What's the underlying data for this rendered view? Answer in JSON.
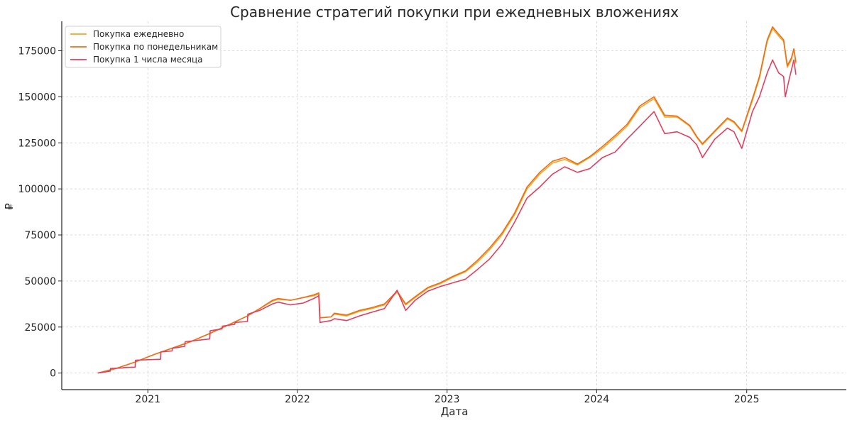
{
  "chart_data": {
    "type": "line",
    "title": "Сравнение стратегий покупки при ежедневных вложениях",
    "xlabel": "Дата",
    "ylabel": "₽",
    "xlim": [
      "2020-06-05",
      "2025-09-01"
    ],
    "ylim": [
      -9000,
      191000
    ],
    "x_ticks": [
      {
        "date": "2021-01-01",
        "label": "2021"
      },
      {
        "date": "2022-01-01",
        "label": "2022"
      },
      {
        "date": "2023-01-01",
        "label": "2023"
      },
      {
        "date": "2024-01-01",
        "label": "2024"
      },
      {
        "date": "2025-01-01",
        "label": "2025"
      }
    ],
    "y_ticks": [
      {
        "value": 0,
        "label": "0"
      },
      {
        "value": 25000,
        "label": "25000"
      },
      {
        "value": 50000,
        "label": "50000"
      },
      {
        "value": 75000,
        "label": "75000"
      },
      {
        "value": 100000,
        "label": "100000"
      },
      {
        "value": 125000,
        "label": "125000"
      },
      {
        "value": 150000,
        "label": "150000"
      },
      {
        "value": 175000,
        "label": "175000"
      }
    ],
    "grid": true,
    "legend_position": "top-left",
    "series": [
      {
        "name": "Покупка ежедневно",
        "color": "#f5a623",
        "points": [
          [
            "2020-09-01",
            0
          ],
          [
            "2020-10-15",
            2500
          ],
          [
            "2020-12-01",
            6000
          ],
          [
            "2021-01-15",
            10000
          ],
          [
            "2021-03-01",
            13500
          ],
          [
            "2021-04-15",
            17000
          ],
          [
            "2021-06-01",
            21500
          ],
          [
            "2021-07-15",
            26000
          ],
          [
            "2021-09-01",
            31000
          ],
          [
            "2021-10-01",
            35000
          ],
          [
            "2021-11-01",
            39000
          ],
          [
            "2021-11-15",
            40000
          ],
          [
            "2021-12-15",
            39500
          ],
          [
            "2022-01-15",
            41000
          ],
          [
            "2022-02-10",
            42000
          ],
          [
            "2022-02-22",
            43000
          ],
          [
            "2022-02-25",
            30000
          ],
          [
            "2022-03-24",
            30500
          ],
          [
            "2022-04-01",
            32000
          ],
          [
            "2022-05-01",
            31000
          ],
          [
            "2022-06-01",
            33500
          ],
          [
            "2022-07-01",
            35000
          ],
          [
            "2022-08-01",
            37000
          ],
          [
            "2022-09-01",
            44000
          ],
          [
            "2022-09-22",
            37000
          ],
          [
            "2022-10-15",
            41000
          ],
          [
            "2022-11-15",
            46000
          ],
          [
            "2022-12-15",
            48500
          ],
          [
            "2023-01-15",
            52000
          ],
          [
            "2023-02-15",
            55000
          ],
          [
            "2023-03-15",
            60000
          ],
          [
            "2023-04-15",
            67000
          ],
          [
            "2023-05-15",
            75000
          ],
          [
            "2023-06-15",
            86000
          ],
          [
            "2023-07-15",
            100000
          ],
          [
            "2023-08-15",
            108000
          ],
          [
            "2023-09-15",
            114000
          ],
          [
            "2023-10-15",
            116000
          ],
          [
            "2023-11-15",
            113000
          ],
          [
            "2023-12-15",
            117000
          ],
          [
            "2024-01-15",
            122000
          ],
          [
            "2024-02-15",
            128000
          ],
          [
            "2024-03-15",
            134000
          ],
          [
            "2024-04-15",
            144000
          ],
          [
            "2024-05-20",
            149000
          ],
          [
            "2024-06-15",
            139000
          ],
          [
            "2024-07-15",
            139000
          ],
          [
            "2024-08-15",
            134000
          ],
          [
            "2024-09-01",
            128000
          ],
          [
            "2024-09-15",
            124000
          ],
          [
            "2024-10-15",
            131000
          ],
          [
            "2024-11-15",
            138000
          ],
          [
            "2024-12-01",
            136000
          ],
          [
            "2024-12-20",
            131000
          ],
          [
            "2025-01-15",
            148000
          ],
          [
            "2025-02-01",
            160000
          ],
          [
            "2025-02-20",
            180000
          ],
          [
            "2025-03-05",
            187000
          ],
          [
            "2025-03-20",
            183000
          ],
          [
            "2025-04-01",
            180000
          ],
          [
            "2025-04-10",
            166000
          ],
          [
            "2025-04-20",
            170000
          ],
          [
            "2025-04-26",
            176000
          ],
          [
            "2025-05-01",
            168000
          ]
        ]
      },
      {
        "name": "Покупка по понедельникам",
        "color": "#e8711c",
        "points": [
          [
            "2020-09-01",
            0
          ],
          [
            "2020-10-15",
            2500
          ],
          [
            "2020-12-01",
            6000
          ],
          [
            "2021-01-15",
            10000
          ],
          [
            "2021-03-01",
            13500
          ],
          [
            "2021-04-15",
            17000
          ],
          [
            "2021-06-01",
            21500
          ],
          [
            "2021-07-15",
            26000
          ],
          [
            "2021-09-01",
            31000
          ],
          [
            "2021-10-01",
            35000
          ],
          [
            "2021-11-01",
            39500
          ],
          [
            "2021-11-15",
            40500
          ],
          [
            "2021-12-15",
            39500
          ],
          [
            "2022-01-15",
            41000
          ],
          [
            "2022-02-10",
            42500
          ],
          [
            "2022-02-22",
            43500
          ],
          [
            "2022-02-25",
            30000
          ],
          [
            "2022-03-24",
            30500
          ],
          [
            "2022-04-01",
            32500
          ],
          [
            "2022-05-01",
            31500
          ],
          [
            "2022-06-01",
            34000
          ],
          [
            "2022-07-01",
            35500
          ],
          [
            "2022-08-01",
            37500
          ],
          [
            "2022-09-01",
            44500
          ],
          [
            "2022-09-22",
            37500
          ],
          [
            "2022-10-15",
            41500
          ],
          [
            "2022-11-15",
            46500
          ],
          [
            "2022-12-15",
            49000
          ],
          [
            "2023-01-15",
            52500
          ],
          [
            "2023-02-15",
            55500
          ],
          [
            "2023-03-15",
            61000
          ],
          [
            "2023-04-15",
            68000
          ],
          [
            "2023-05-15",
            76000
          ],
          [
            "2023-06-15",
            87000
          ],
          [
            "2023-07-15",
            101000
          ],
          [
            "2023-08-15",
            109000
          ],
          [
            "2023-09-15",
            115000
          ],
          [
            "2023-10-15",
            117000
          ],
          [
            "2023-11-15",
            113500
          ],
          [
            "2023-12-15",
            117500
          ],
          [
            "2024-01-15",
            123000
          ],
          [
            "2024-02-15",
            129000
          ],
          [
            "2024-03-15",
            135000
          ],
          [
            "2024-04-15",
            145000
          ],
          [
            "2024-05-20",
            150000
          ],
          [
            "2024-06-15",
            140000
          ],
          [
            "2024-07-15",
            139500
          ],
          [
            "2024-08-15",
            134500
          ],
          [
            "2024-09-01",
            128500
          ],
          [
            "2024-09-15",
            124500
          ],
          [
            "2024-10-15",
            131500
          ],
          [
            "2024-11-15",
            138500
          ],
          [
            "2024-12-01",
            136500
          ],
          [
            "2024-12-20",
            131500
          ],
          [
            "2025-01-15",
            149000
          ],
          [
            "2025-02-01",
            161000
          ],
          [
            "2025-02-20",
            181000
          ],
          [
            "2025-03-05",
            188000
          ],
          [
            "2025-03-20",
            184000
          ],
          [
            "2025-04-01",
            181000
          ],
          [
            "2025-04-10",
            167000
          ],
          [
            "2025-04-20",
            171000
          ],
          [
            "2025-04-26",
            176000
          ],
          [
            "2025-05-01",
            169000
          ]
        ]
      },
      {
        "name": "Покупка 1 числа месяца",
        "color": "#e0405e",
        "points": [
          [
            "2020-09-01",
            0
          ],
          [
            "2020-10-01",
            1000
          ],
          [
            "2020-10-02",
            2500
          ],
          [
            "2020-11-01",
            2800
          ],
          [
            "2020-11-02",
            3000
          ],
          [
            "2020-12-01",
            3200
          ],
          [
            "2020-12-02",
            7000
          ],
          [
            "2021-02-01",
            7500
          ],
          [
            "2021-02-02",
            11500
          ],
          [
            "2021-03-01",
            12000
          ],
          [
            "2021-03-02",
            13500
          ],
          [
            "2021-04-01",
            14500
          ],
          [
            "2021-04-02",
            17000
          ],
          [
            "2021-06-01",
            18500
          ],
          [
            "2021-06-02",
            23000
          ],
          [
            "2021-07-01",
            24000
          ],
          [
            "2021-07-02",
            25500
          ],
          [
            "2021-08-01",
            26500
          ],
          [
            "2021-08-02",
            27500
          ],
          [
            "2021-09-01",
            28000
          ],
          [
            "2021-09-02",
            32000
          ],
          [
            "2021-10-01",
            34000
          ],
          [
            "2021-11-01",
            37500
          ],
          [
            "2021-11-15",
            38500
          ],
          [
            "2021-12-15",
            37000
          ],
          [
            "2022-01-15",
            38000
          ],
          [
            "2022-02-10",
            40500
          ],
          [
            "2022-02-22",
            42000
          ],
          [
            "2022-02-25",
            27500
          ],
          [
            "2022-03-24",
            28500
          ],
          [
            "2022-04-01",
            29500
          ],
          [
            "2022-05-01",
            28500
          ],
          [
            "2022-06-01",
            31000
          ],
          [
            "2022-07-01",
            33000
          ],
          [
            "2022-08-01",
            35000
          ],
          [
            "2022-09-01",
            45000
          ],
          [
            "2022-09-22",
            34000
          ],
          [
            "2022-10-15",
            39500
          ],
          [
            "2022-11-15",
            44500
          ],
          [
            "2022-12-15",
            47000
          ],
          [
            "2023-01-15",
            49000
          ],
          [
            "2023-02-15",
            51000
          ],
          [
            "2023-03-15",
            56000
          ],
          [
            "2023-04-15",
            62000
          ],
          [
            "2023-05-15",
            70000
          ],
          [
            "2023-06-15",
            82000
          ],
          [
            "2023-07-15",
            95000
          ],
          [
            "2023-08-15",
            101000
          ],
          [
            "2023-09-15",
            108000
          ],
          [
            "2023-10-15",
            112000
          ],
          [
            "2023-11-15",
            109000
          ],
          [
            "2023-12-15",
            111000
          ],
          [
            "2024-01-15",
            117000
          ],
          [
            "2024-02-15",
            120000
          ],
          [
            "2024-03-15",
            127000
          ],
          [
            "2024-04-15",
            134000
          ],
          [
            "2024-05-20",
            142000
          ],
          [
            "2024-06-15",
            130000
          ],
          [
            "2024-07-15",
            131000
          ],
          [
            "2024-08-15",
            128000
          ],
          [
            "2024-09-01",
            124000
          ],
          [
            "2024-09-15",
            117000
          ],
          [
            "2024-10-15",
            127000
          ],
          [
            "2024-11-15",
            133000
          ],
          [
            "2024-12-01",
            131000
          ],
          [
            "2024-12-20",
            122000
          ],
          [
            "2025-01-15",
            142000
          ],
          [
            "2025-02-01",
            150000
          ],
          [
            "2025-02-20",
            163000
          ],
          [
            "2025-03-05",
            170000
          ],
          [
            "2025-03-20",
            163000
          ],
          [
            "2025-04-01",
            161000
          ],
          [
            "2025-04-05",
            150000
          ],
          [
            "2025-04-15",
            160000
          ],
          [
            "2025-04-26",
            170000
          ],
          [
            "2025-05-01",
            162000
          ]
        ]
      }
    ]
  }
}
